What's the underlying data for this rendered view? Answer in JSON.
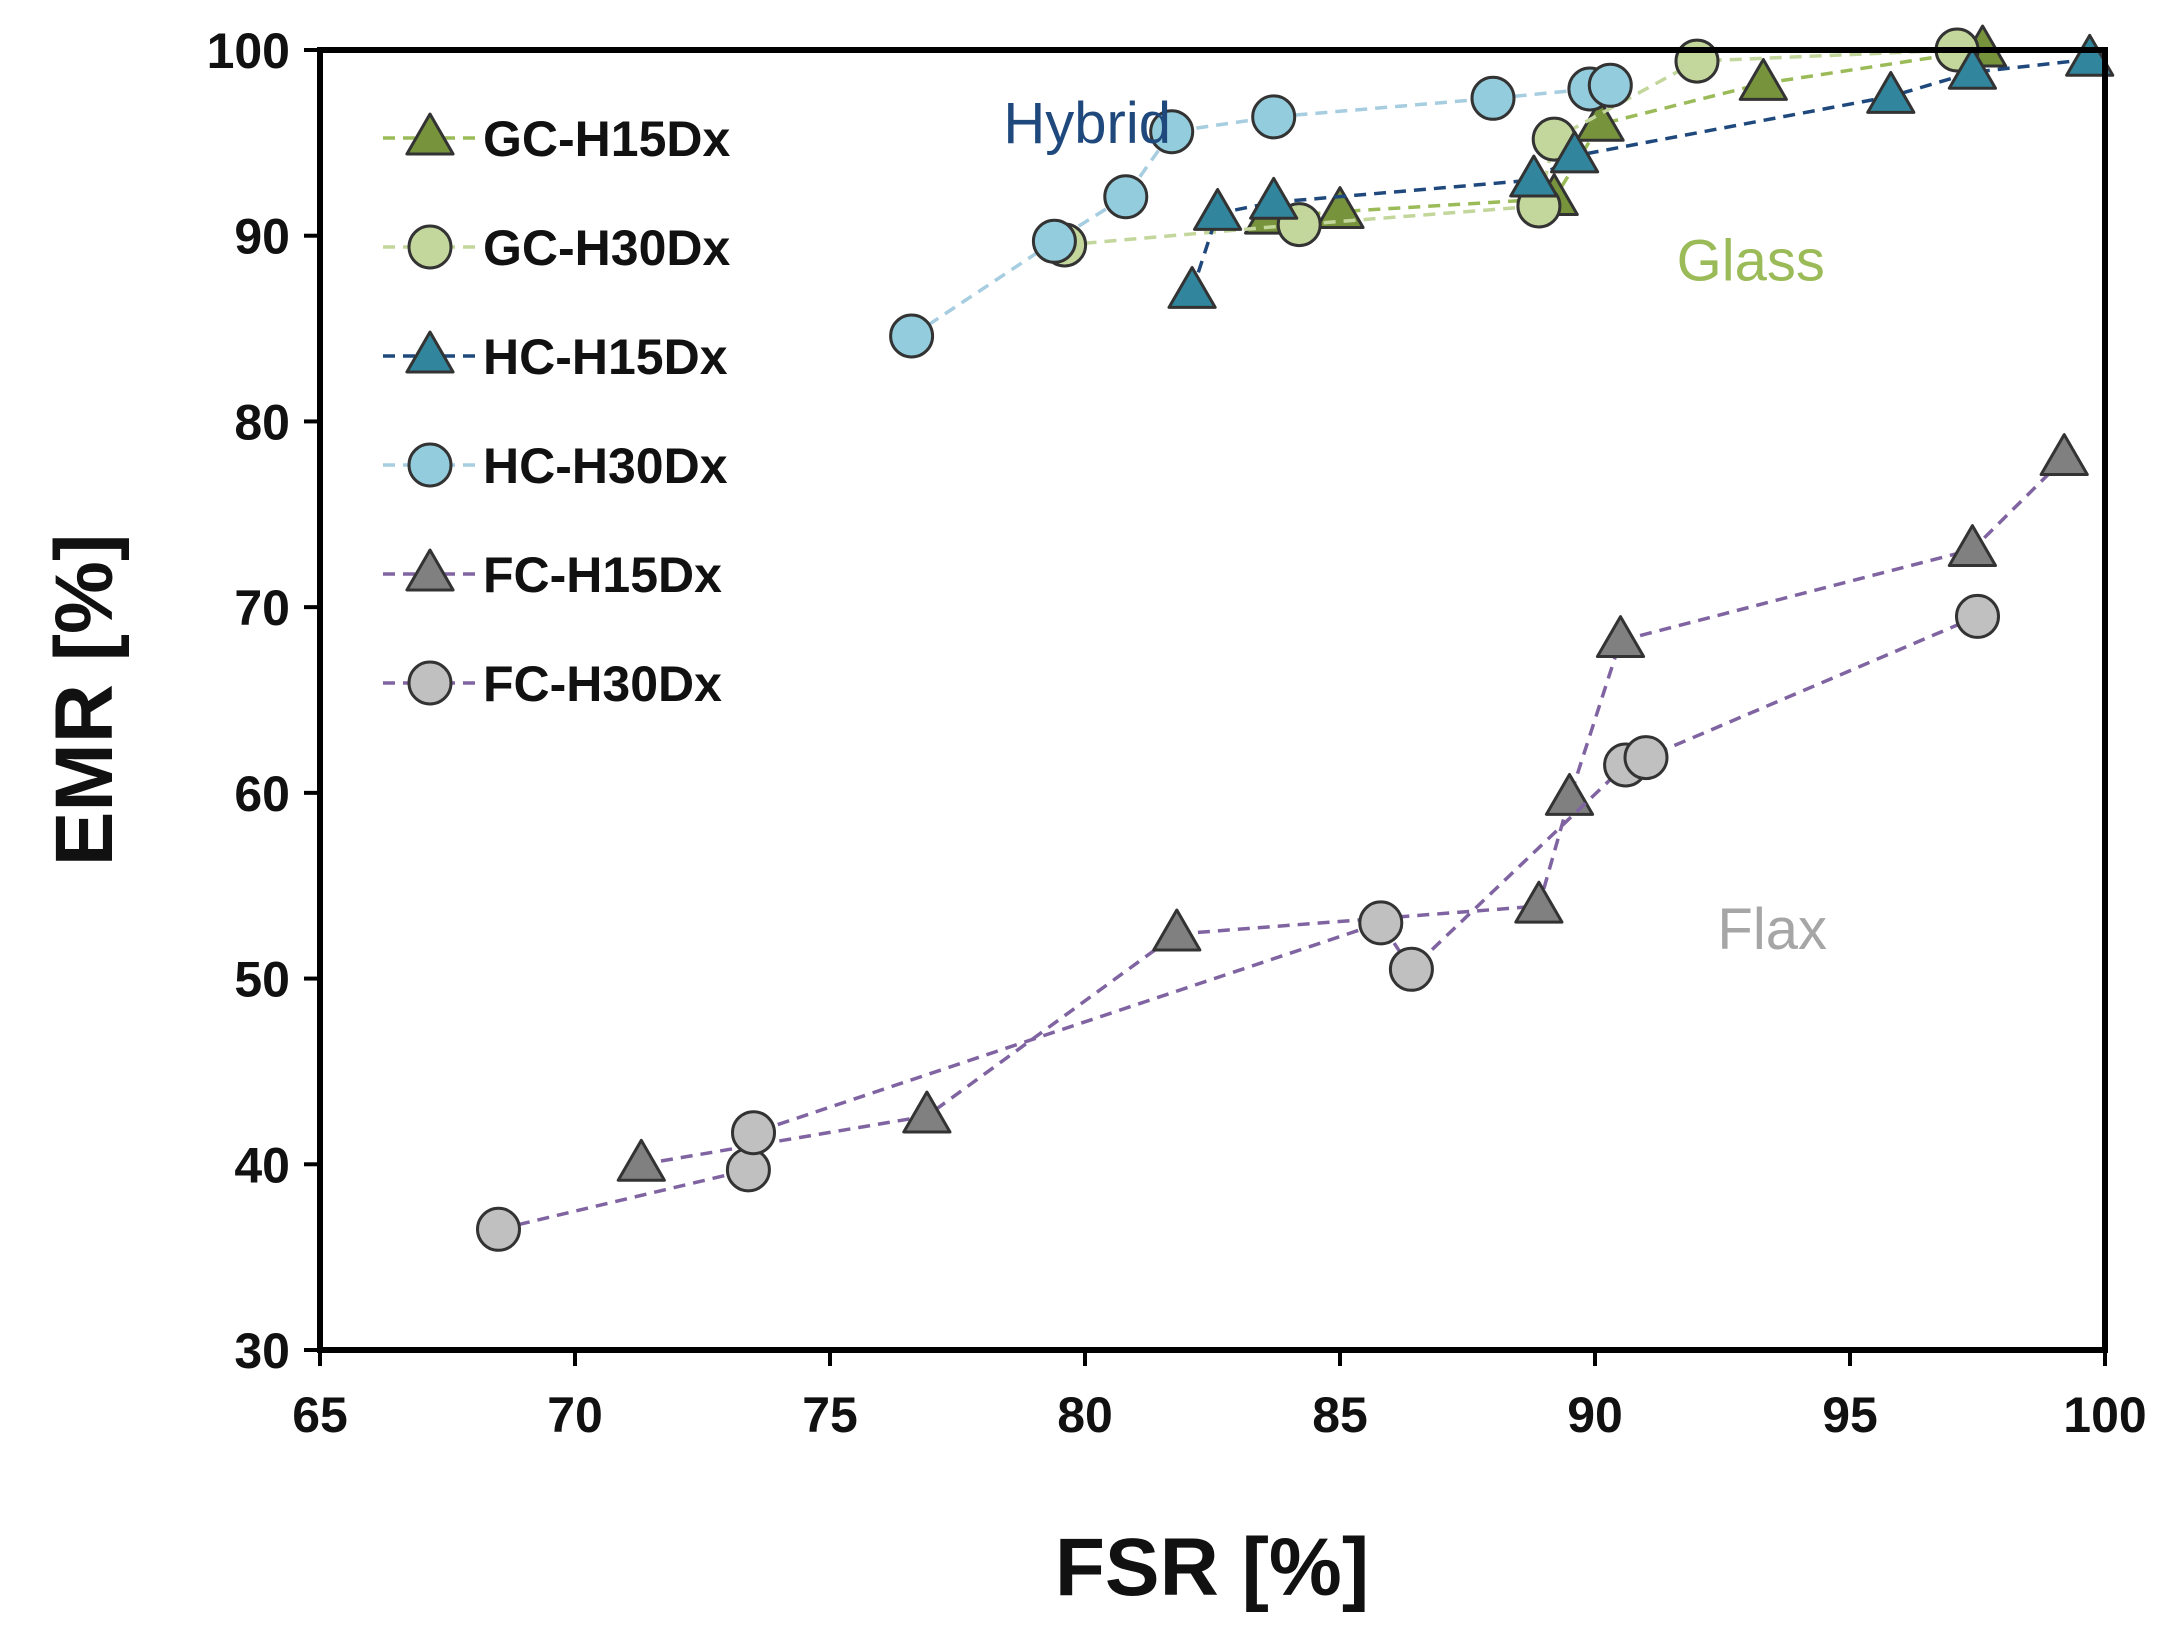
{
  "chart_data": {
    "type": "scatter",
    "title": "",
    "xlabel": "FSR [%]",
    "ylabel": "EMR [%]",
    "xlim": [
      65,
      100
    ],
    "ylim": [
      30,
      100
    ],
    "xticks": [
      65,
      70,
      75,
      80,
      85,
      90,
      95,
      100
    ],
    "yticks": [
      30,
      40,
      50,
      60,
      70,
      80,
      90,
      100
    ],
    "grid": false,
    "legend_position": "top-left",
    "series": [
      {
        "name": "GC-H15Dx",
        "marker": "triangle",
        "fill": "#77933c",
        "line": "#9bbb59",
        "x": [
          83.6,
          85.0,
          89.2,
          90.1,
          93.3,
          97.6
        ],
        "y": [
          91.0,
          91.3,
          92.0,
          96.0,
          98.2,
          100.0
        ]
      },
      {
        "name": "GC-H30Dx",
        "marker": "circle",
        "fill": "#c3d69b",
        "line": "#c3d69b",
        "x": [
          79.6,
          84.2,
          88.9,
          89.2,
          92.0,
          97.1
        ],
        "y": [
          89.5,
          90.6,
          91.6,
          95.2,
          99.4,
          100.0
        ]
      },
      {
        "name": "HC-H15Dx",
        "marker": "triangle",
        "fill": "#31859c",
        "line": "#1f497d",
        "x": [
          82.1,
          82.6,
          83.7,
          88.8,
          89.6,
          95.8,
          97.4,
          99.7
        ],
        "y": [
          87.0,
          91.2,
          91.8,
          93.0,
          94.3,
          97.5,
          98.8,
          99.5
        ]
      },
      {
        "name": "HC-H30Dx",
        "marker": "circle",
        "fill": "#93cddd",
        "line": "#a6cde0",
        "x": [
          76.6,
          79.4,
          80.8,
          81.7,
          83.7,
          88.0,
          89.9,
          90.3
        ],
        "y": [
          84.6,
          89.7,
          92.1,
          95.6,
          96.4,
          97.4,
          97.9,
          98.1
        ]
      },
      {
        "name": "FC-H15Dx",
        "marker": "triangle",
        "fill": "#808080",
        "line": "#8064a2",
        "x": [
          71.3,
          76.9,
          81.8,
          88.9,
          89.5,
          90.5,
          97.4,
          99.2
        ],
        "y": [
          40.0,
          42.6,
          52.4,
          53.9,
          59.7,
          68.2,
          73.1,
          78.0
        ]
      },
      {
        "name": "FC-H30Dx",
        "marker": "circle",
        "fill": "#c0c0c0",
        "line": "#8064a2",
        "x": [
          68.5,
          73.4,
          73.5,
          85.8,
          86.4,
          90.6,
          91.0,
          97.5
        ],
        "y": [
          36.5,
          39.7,
          41.7,
          53.0,
          50.5,
          61.5,
          61.9,
          69.5
        ]
      }
    ],
    "annotations": [
      {
        "text": "Hybrid",
        "color": "#1f497d",
        "x": 78.4,
        "y": 95.0
      },
      {
        "text": "Glass",
        "color": "#9bbb59",
        "x": 91.6,
        "y": 87.6
      },
      {
        "text": "Flax",
        "color": "#a6a6a6",
        "x": 92.4,
        "y": 51.6
      }
    ]
  }
}
